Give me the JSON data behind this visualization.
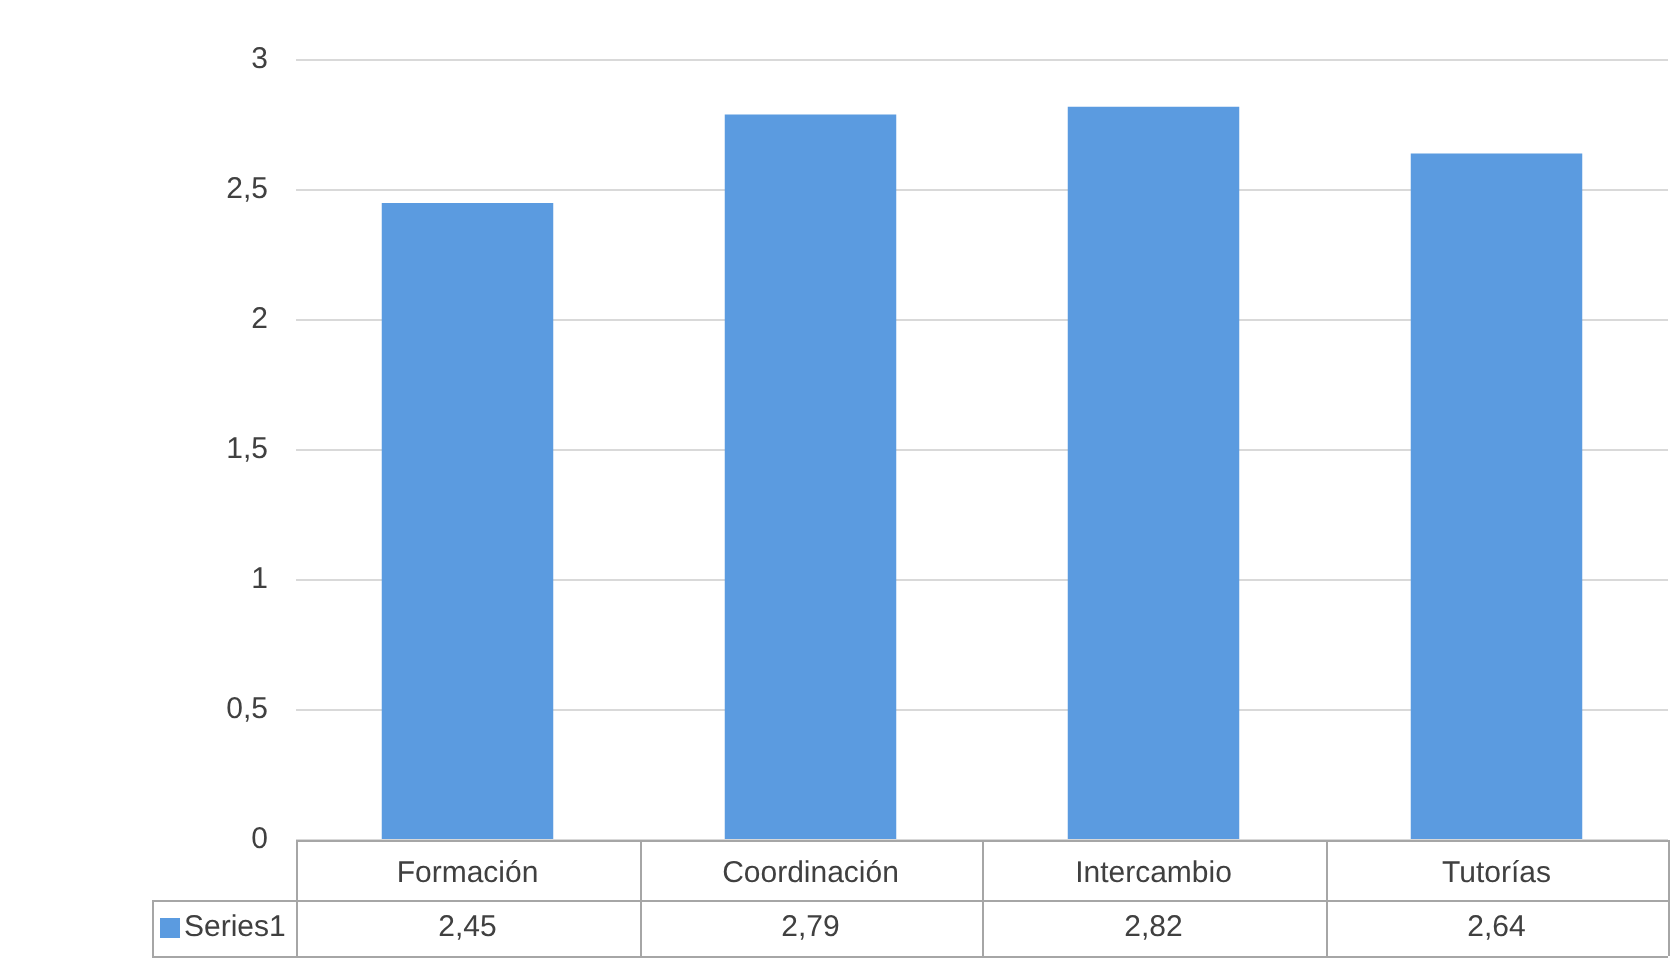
{
  "chart_data": {
    "type": "bar",
    "categories": [
      "Formación",
      "Coordinación",
      "Intercambio",
      "Tutorías"
    ],
    "series": [
      {
        "name": "Series1",
        "color": "#5b9be0",
        "values": [
          2.45,
          2.79,
          2.82,
          2.64
        ],
        "value_labels": [
          "2,45",
          "2,79",
          "2,82",
          "2,64"
        ]
      }
    ],
    "ylim": [
      0,
      3
    ],
    "yticks": [
      0,
      {
        "value": 0.5,
        "label": "0,5"
      },
      1,
      {
        "value": 1.5,
        "label": "1,5"
      },
      2,
      {
        "value": 2.5,
        "label": "2,5"
      },
      3
    ],
    "grid": "y"
  }
}
